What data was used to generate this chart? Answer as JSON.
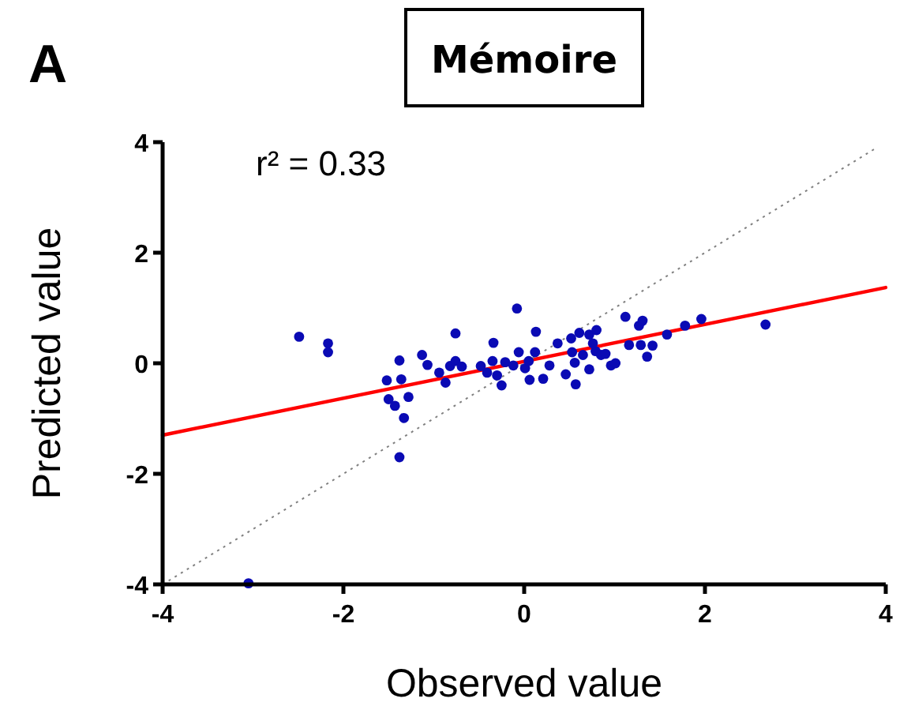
{
  "chart_data": {
    "type": "scatter",
    "title": "Mémoire",
    "xlabel": "Observed value",
    "ylabel": "Predicted value",
    "annotations": [
      "A",
      "r² = 0.33"
    ],
    "xlim": [
      -4,
      4
    ],
    "ylim": [
      -4,
      4
    ],
    "xticks": [
      -4,
      -2,
      0,
      2,
      4
    ],
    "yticks": [
      -4,
      -2,
      0,
      2,
      4
    ],
    "grid": false,
    "series": [
      {
        "color": "#0a0ab4",
        "marker": "circle",
        "x": [
          -2.49,
          -2.17,
          -2.17,
          -3.05,
          -1.52,
          -1.5,
          -1.43,
          -1.38,
          -1.36,
          -1.33,
          -1.28,
          -1.38,
          -1.13,
          -1.07,
          -0.94,
          -0.87,
          -0.82,
          -0.76,
          -0.76,
          -0.69,
          -0.48,
          -0.41,
          -0.35,
          -0.34,
          -0.3,
          -0.25,
          -0.21,
          -0.12,
          -0.08,
          -0.06,
          0.01,
          0.05,
          0.06,
          0.13,
          0.12,
          0.21,
          0.28,
          0.37,
          0.46,
          0.52,
          0.53,
          0.56,
          0.57,
          0.61,
          0.65,
          0.72,
          0.72,
          0.8,
          0.79,
          0.85,
          0.9,
          0.96,
          1.01,
          1.12,
          1.16,
          1.27,
          1.31,
          1.29,
          1.36,
          1.42,
          1.58,
          1.78,
          1.96,
          2.67,
          0.76
        ],
        "values": [
          0.48,
          0.36,
          0.2,
          -3.98,
          -0.31,
          -0.65,
          -0.77,
          0.05,
          -0.29,
          -0.99,
          -0.61,
          -1.7,
          0.15,
          -0.03,
          -0.17,
          -0.35,
          -0.05,
          0.54,
          0.04,
          -0.06,
          -0.05,
          -0.17,
          0.04,
          0.37,
          -0.22,
          -0.4,
          0.02,
          -0.04,
          0.99,
          0.2,
          -0.09,
          0.04,
          -0.3,
          0.57,
          0.2,
          -0.28,
          -0.04,
          0.36,
          -0.2,
          0.45,
          0.2,
          0.01,
          -0.38,
          0.55,
          0.15,
          -0.11,
          0.52,
          0.6,
          0.22,
          0.15,
          0.17,
          -0.04,
          0,
          0.84,
          0.33,
          0.68,
          0.77,
          0.33,
          0.12,
          0.32,
          0.52,
          0.68,
          0.8,
          0.7,
          0.36
        ]
      },
      {
        "type": "line",
        "color": "#ff0000",
        "line_style": "solid",
        "x": [
          -4,
          4
        ],
        "values": [
          -1.3,
          1.37
        ]
      },
      {
        "type": "line",
        "color": "#808080",
        "line_style": "dotted",
        "x": [
          -4,
          3.9
        ],
        "values": [
          -4,
          3.9
        ]
      }
    ]
  }
}
